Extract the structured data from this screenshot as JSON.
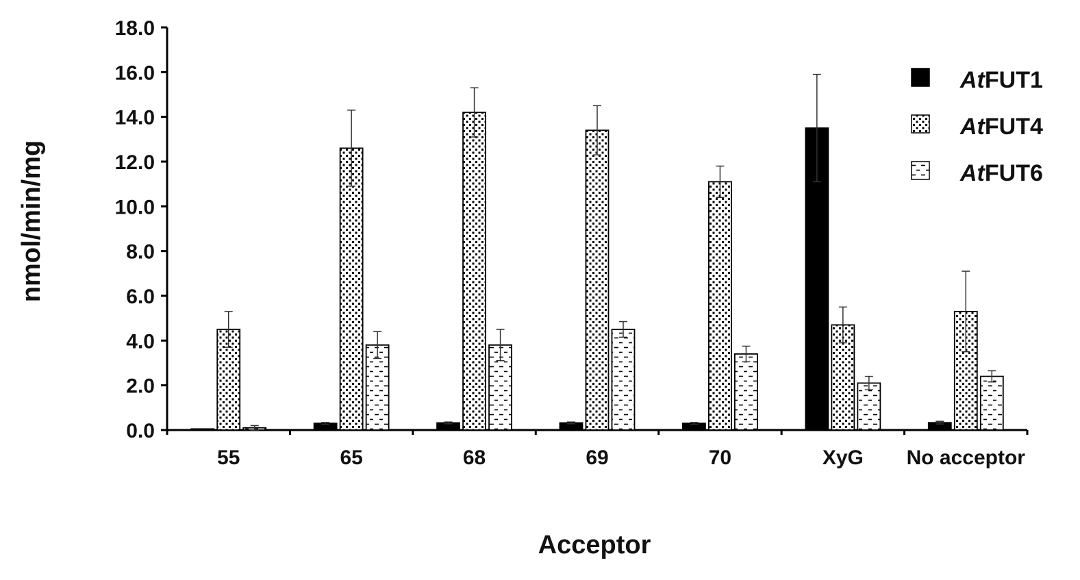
{
  "chart_data": {
    "type": "bar",
    "categories": [
      "55",
      "65",
      "68",
      "69",
      "70",
      "XyG",
      "No acceptor"
    ],
    "series": [
      {
        "name_prefix": "At",
        "name_suffix": "FUT1",
        "fill": "solid",
        "color": "#000000",
        "values": [
          0.05,
          0.3,
          0.32,
          0.32,
          0.3,
          13.5,
          0.33
        ],
        "errors": [
          0.0,
          0.04,
          0.04,
          0.04,
          0.04,
          2.4,
          0.06
        ]
      },
      {
        "name_prefix": "At",
        "name_suffix": "FUT4",
        "fill": "dotted",
        "color": "#000000",
        "values": [
          4.5,
          12.6,
          14.2,
          13.4,
          11.1,
          4.7,
          5.3
        ],
        "errors": [
          0.8,
          1.7,
          1.1,
          1.1,
          0.7,
          0.8,
          1.8
        ]
      },
      {
        "name_prefix": "At",
        "name_suffix": "FUT6",
        "fill": "dashed",
        "color": "#000000",
        "values": [
          0.1,
          3.8,
          3.8,
          4.5,
          3.4,
          2.1,
          2.4
        ],
        "errors": [
          0.1,
          0.6,
          0.7,
          0.35,
          0.35,
          0.3,
          0.25
        ]
      }
    ],
    "ylim": [
      0,
      18
    ],
    "yticks": [
      "0.0",
      "2.0",
      "4.0",
      "6.0",
      "8.0",
      "10.0",
      "12.0",
      "14.0",
      "16.0",
      "18.0"
    ],
    "xlabel": "Acceptor",
    "ylabel": "nmol/min/mg",
    "legend_position": "top-right",
    "grid": false
  }
}
